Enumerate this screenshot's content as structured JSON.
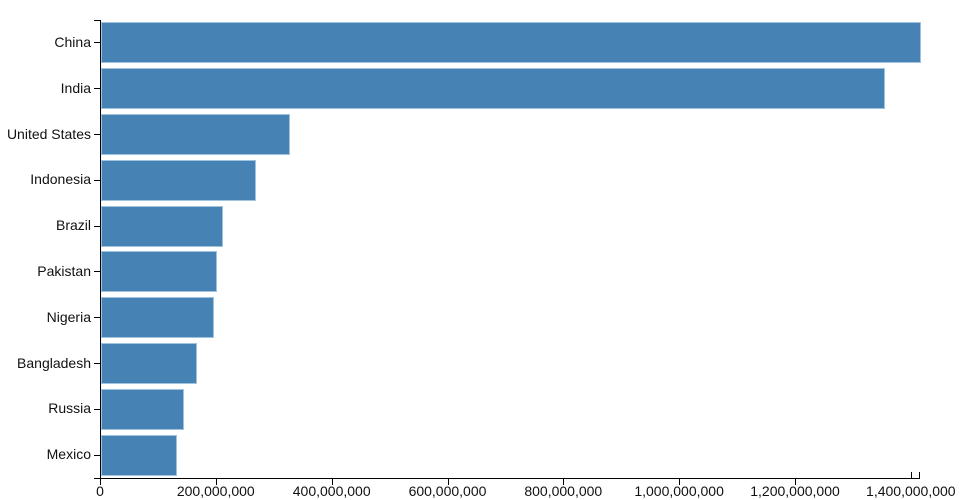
{
  "chart_data": {
    "type": "bar",
    "orientation": "horizontal",
    "title": "",
    "xlabel": "",
    "ylabel": "",
    "categories": [
      "China",
      "India",
      "United States",
      "Indonesia",
      "Brazil",
      "Pakistan",
      "Nigeria",
      "Bangladesh",
      "Russia",
      "Mexico"
    ],
    "values": [
      1415046000,
      1354052000,
      326767000,
      266795000,
      210868000,
      200814000,
      195875000,
      166368000,
      143965000,
      130759000
    ],
    "xlim": [
      0,
      1415046000
    ],
    "x_tick_interval": 200000000,
    "x_tick_values": [
      0,
      200000000,
      400000000,
      600000000,
      800000000,
      1000000000,
      1200000000,
      1400000000
    ],
    "x_tick_labels": [
      "0",
      "200,000,000",
      "400,000,000",
      "600,000,000",
      "800,000,000",
      "1,000,000,000",
      "1,200,000,000",
      "1,400,000,000"
    ],
    "grid": false,
    "legend": false,
    "bar_color": "#4682b4",
    "axis_color": "#000000",
    "text_color": "#111111",
    "background_color": "#ffffff"
  }
}
